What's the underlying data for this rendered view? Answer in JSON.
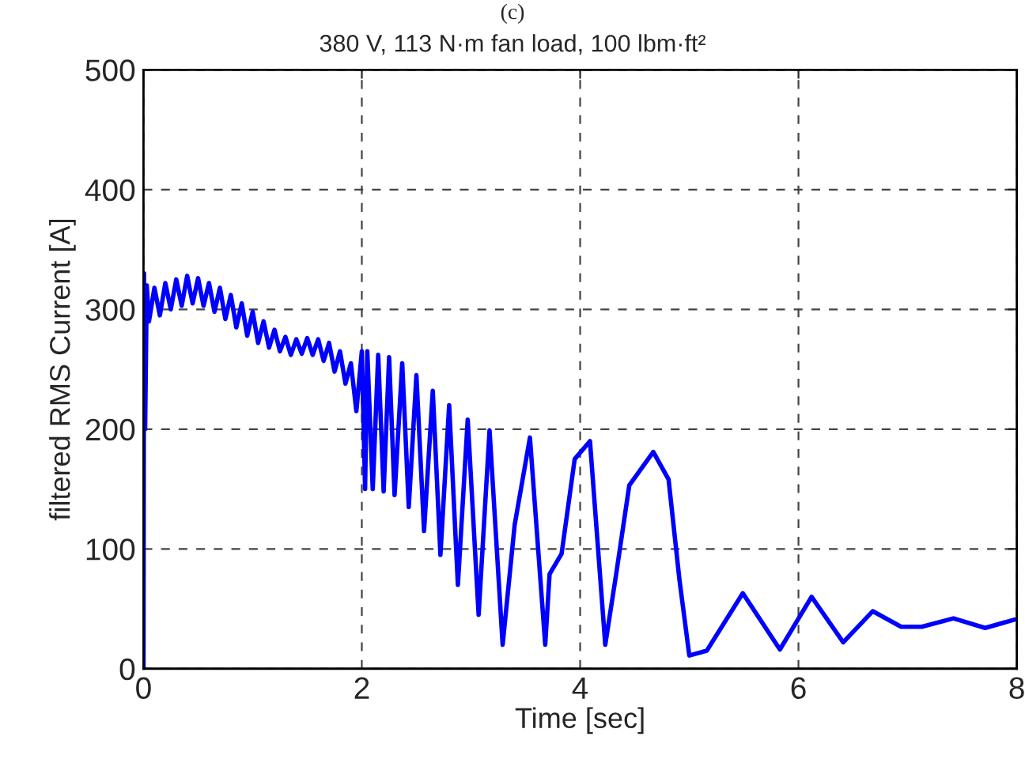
{
  "chart_data": {
    "type": "line",
    "title": "(c)",
    "subtitle": "380 V, 113 N·m fan load, 100 lbm·ft²",
    "xlabel": "Time [sec]",
    "ylabel": "filtered RMS Current [A]",
    "x": [
      0,
      0.005,
      0.015,
      0.03,
      0.05,
      0.1,
      0.15,
      0.2,
      0.25,
      0.3,
      0.35,
      0.4,
      0.45,
      0.5,
      0.55,
      0.6,
      0.65,
      0.7,
      0.75,
      0.8,
      0.85,
      0.9,
      0.95,
      1.0,
      1.05,
      1.1,
      1.15,
      1.2,
      1.25,
      1.3,
      1.35,
      1.4,
      1.45,
      1.5,
      1.55,
      1.6,
      1.65,
      1.7,
      1.75,
      1.8,
      1.85,
      1.9,
      1.95,
      2.0,
      2.03,
      2.05,
      2.1,
      2.15,
      2.2,
      2.25,
      2.3,
      2.37,
      2.43,
      2.5,
      2.57,
      2.65,
      2.72,
      2.8,
      2.88,
      2.97,
      3.07,
      3.17,
      3.29,
      3.4,
      3.54,
      3.68,
      3.72,
      3.83,
      3.95,
      4.09,
      4.23,
      4.33,
      4.45,
      4.67,
      4.81,
      4.91,
      5.0,
      5.16,
      5.49,
      5.83,
      6.12,
      6.41,
      6.68,
      6.94,
      7.13,
      7.42,
      7.71,
      7.98
    ],
    "series": [
      {
        "color": "#0000ff",
        "values": [
          0,
          330,
          200,
          320,
          290,
          318,
          295,
          322,
          300,
          325,
          303,
          328,
          305,
          326,
          303,
          322,
          298,
          318,
          292,
          312,
          285,
          305,
          278,
          298,
          272,
          290,
          268,
          283,
          265,
          277,
          262,
          275,
          263,
          276,
          262,
          275,
          257,
          272,
          248,
          265,
          238,
          255,
          215,
          265,
          150,
          265,
          150,
          262,
          148,
          260,
          145,
          255,
          135,
          245,
          115,
          232,
          95,
          220,
          70,
          208,
          45,
          199,
          20,
          120,
          193,
          20,
          79,
          96,
          175,
          190,
          20,
          79,
          153,
          181,
          158,
          74,
          11,
          15,
          63,
          16,
          60,
          22,
          48,
          35,
          35,
          42,
          34,
          41
        ]
      }
    ],
    "xlim": [
      0,
      8
    ],
    "ylim": [
      0,
      500
    ],
    "xticks": [
      0,
      2,
      4,
      6,
      8
    ],
    "yticks": [
      0,
      100,
      200,
      300,
      400,
      500
    ],
    "grid": true,
    "line_style": "solid"
  }
}
